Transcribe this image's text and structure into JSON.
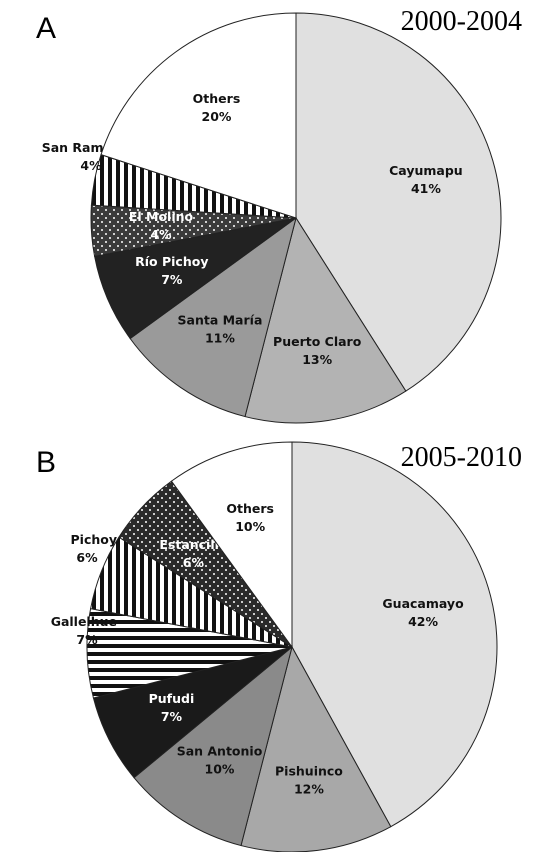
{
  "chart_data": [
    {
      "type": "pie",
      "panel": "A",
      "title": "2000-2004",
      "categories": [
        "Cayumapu",
        "Puerto Claro",
        "Santa María",
        "Río Pichoy",
        "El Molino",
        "San Ramón",
        "Others"
      ],
      "values": [
        41,
        13,
        11,
        7,
        4,
        4,
        20
      ],
      "value_labels": [
        "41%",
        "13%",
        "11%",
        "7%",
        "4%",
        "4%",
        "20%"
      ],
      "colors": [
        "#e0e0e0",
        "#b3b3b3",
        "#9a9a9a",
        "#222222",
        "#3a3a3a",
        "#111111",
        "#ffffff"
      ],
      "patterns": [
        "solid",
        "solid",
        "solid",
        "solid",
        "dots",
        "vertical-stripes",
        "solid"
      ]
    },
    {
      "type": "pie",
      "panel": "B",
      "title": "2005-2010",
      "categories": [
        "Guacamayo",
        "Pishuinco",
        "San Antonio",
        "Pufudi",
        "Gallelhue",
        "Pichoy",
        "Estancilla",
        "Others"
      ],
      "values": [
        42,
        12,
        10,
        7,
        7,
        6,
        6,
        10
      ],
      "value_labels": [
        "42%",
        "12%",
        "10%",
        "7%",
        "7%",
        "6%",
        "6%",
        "10%"
      ],
      "colors": [
        "#e0e0e0",
        "#a8a8a8",
        "#8a8a8a",
        "#1a1a1a",
        "#111111",
        "#111111",
        "#2a2a2a",
        "#ffffff"
      ],
      "patterns": [
        "solid",
        "solid",
        "solid",
        "solid",
        "horizontal-stripes",
        "vertical-stripes",
        "dots",
        "solid"
      ]
    }
  ]
}
